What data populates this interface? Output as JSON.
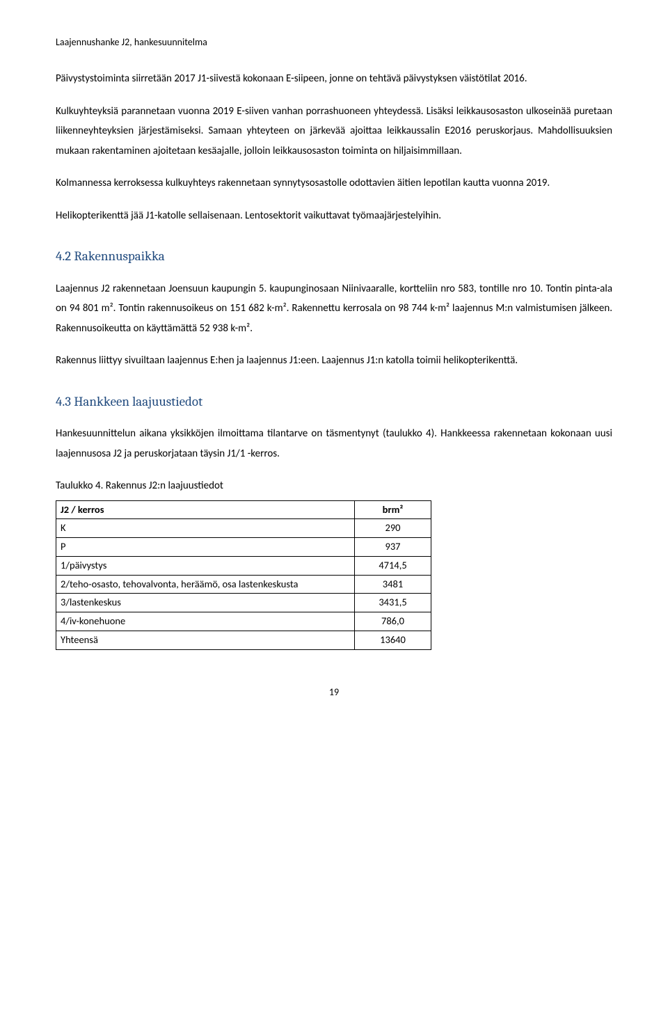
{
  "header": "Laajennushanke J2, hankesuunnitelma",
  "paragraphs": {
    "p1": "Päivystystoiminta siirretään 2017 J1-siivestä kokonaan E-siipeen, jonne on tehtävä päivystyksen väistötilat 2016.",
    "p2": "Kulkuyhteyksiä parannetaan vuonna 2019 E-siiven vanhan porrashuoneen yhteydessä. Lisäksi leikkausosaston ulkoseinää puretaan liikenneyhteyksien järjestämiseksi. Samaan yhteyteen on järkevää ajoittaa leikkaussalin E2016 peruskorjaus. Mahdollisuuksien mukaan rakentaminen ajoitetaan kesäajalle, jolloin leikkausosaston toiminta on hiljaisimmillaan.",
    "p3": "Kolmannessa kerroksessa kulkuyhteys rakennetaan synnytysosastolle odottavien äitien lepotilan kautta vuonna 2019.",
    "p4": "Helikopterikenttä jää J1-katolle sellaisenaan. Lentosektorit vaikuttavat työmaajärjestelyihin."
  },
  "section1": {
    "heading": "4.2 Rakennuspaikka",
    "p1": "Laajennus J2 rakennetaan Joensuun kaupungin 5. kaupunginosaan Niinivaaralle, kortteliin nro 583, tontille nro 10. Tontin pinta-ala on 94 801 m². Tontin rakennusoikeus on 151 682 k-m². Rakennettu kerrosala on 98 744 k-m² laajennus M:n valmistumisen jälkeen.  Rakennusoikeutta on käyttämättä 52 938 k-m².",
    "p2": "Rakennus liittyy sivuiltaan laajennus E:hen ja laajennus J1:een. Laajennus J1:n katolla toimii helikopterikenttä."
  },
  "section2": {
    "heading": "4.3 Hankkeen laajuustiedot",
    "p1": "Hankesuunnittelun aikana yksikköjen ilmoittama tilantarve on täsmentynyt (taulukko 4). Hankkeessa rakennetaan kokonaan uusi laajennusosa J2 ja peruskorjataan täysin J1/1 -kerros.",
    "tableCaption": "Taulukko 4. Rakennus J2:n laajuustiedot"
  },
  "table": {
    "col1": "J2 / kerros",
    "col2": "brm²",
    "rows": [
      {
        "label": "K",
        "value": "290"
      },
      {
        "label": "P",
        "value": "937"
      },
      {
        "label": "1/päivystys",
        "value": "4714,5"
      },
      {
        "label": "2/teho-osasto, tehovalvonta, heräämö, osa lastenkeskusta",
        "value": "3481"
      },
      {
        "label": "3/lastenkeskus",
        "value": "3431,5"
      },
      {
        "label": "4/iv-konehuone",
        "value": "786,0"
      },
      {
        "label": "Yhteensä",
        "value": "13640"
      }
    ]
  },
  "pageNumber": "19"
}
